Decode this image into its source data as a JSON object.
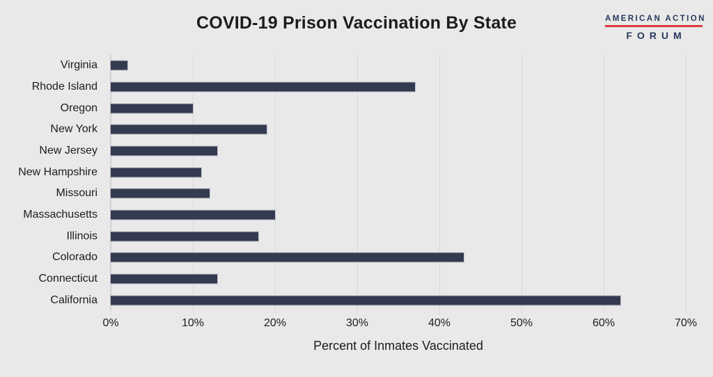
{
  "colors": {
    "page-bg": "#e9e9e9",
    "bar": "#343b50",
    "bar-outline": "#bdc1cb",
    "text": "#1c1c1c",
    "grid": "#d8d8d8",
    "axis": "#d2d2d2",
    "logo-navy": "#27395c",
    "logo-red": "#dd3a3b"
  },
  "logo": {
    "line1": "AMERICAN ACTION",
    "line2": "FORUM"
  },
  "chart_data": {
    "type": "bar",
    "orientation": "horizontal",
    "title": "COVID-19 Prison Vaccination By State",
    "categories": [
      "Virginia",
      "Rhode Island",
      "Oregon",
      "New York",
      "New Jersey",
      "New Hampshire",
      "Missouri",
      "Massachusetts",
      "Illinois",
      "Colorado",
      "Connecticut",
      "California"
    ],
    "values": [
      2,
      37,
      10,
      19,
      13,
      11,
      12,
      20,
      18,
      43,
      13,
      62
    ],
    "unit": "%",
    "xlabel": "Percent of Inmates Vaccinated",
    "xlim": [
      0,
      70
    ],
    "x_ticks": [
      "0%",
      "10%",
      "20%",
      "30%",
      "40%",
      "50%",
      "60%",
      "70%"
    ],
    "grid": true,
    "legend": false
  }
}
